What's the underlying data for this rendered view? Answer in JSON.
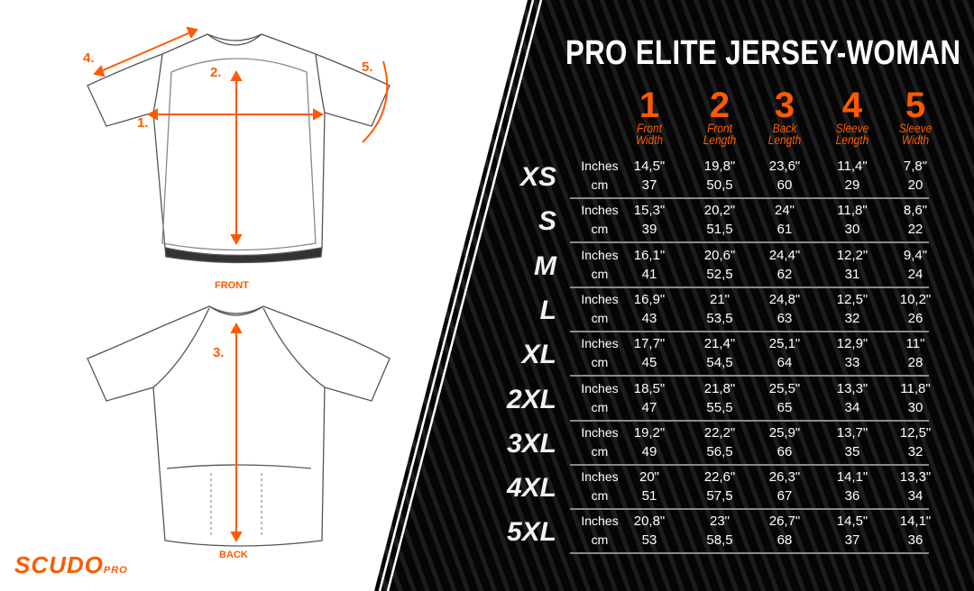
{
  "title": "PRO ELITE JERSEY-WOMAN",
  "brand": {
    "name": "SCUDO",
    "sub": "PRO"
  },
  "accent_color": "#ff5a00",
  "diagram": {
    "front_label": "FRONT",
    "back_label": "BACK",
    "markers": [
      "1.",
      "2.",
      "3.",
      "4.",
      "5."
    ]
  },
  "columns": [
    {
      "num": "1",
      "label": "Front Width"
    },
    {
      "num": "2",
      "label": "Front Length"
    },
    {
      "num": "3",
      "label": "Back Length"
    },
    {
      "num": "4",
      "label": "Sleeve Length"
    },
    {
      "num": "5",
      "label": "Sleeve Width"
    }
  ],
  "units": {
    "inches": "Inches",
    "cm": "cm"
  },
  "rows": [
    {
      "size": "XS",
      "inches": [
        "14,5\"",
        "19,8\"",
        "23,6\"",
        "11,4\"",
        "7,8\""
      ],
      "cm": [
        "37",
        "50,5",
        "60",
        "29",
        "20"
      ]
    },
    {
      "size": "S",
      "inches": [
        "15,3\"",
        "20,2\"",
        "24\"",
        "11,8\"",
        "8,6\""
      ],
      "cm": [
        "39",
        "51,5",
        "61",
        "30",
        "22"
      ]
    },
    {
      "size": "M",
      "inches": [
        "16,1\"",
        "20,6\"",
        "24,4\"",
        "12,2\"",
        "9,4\""
      ],
      "cm": [
        "41",
        "52,5",
        "62",
        "31",
        "24"
      ]
    },
    {
      "size": "L",
      "inches": [
        "16,9\"",
        "21\"",
        "24,8\"",
        "12,5\"",
        "10,2\""
      ],
      "cm": [
        "43",
        "53,5",
        "63",
        "32",
        "26"
      ]
    },
    {
      "size": "XL",
      "inches": [
        "17,7\"",
        "21,4\"",
        "25,1\"",
        "12,9\"",
        "11\""
      ],
      "cm": [
        "45",
        "54,5",
        "64",
        "33",
        "28"
      ]
    },
    {
      "size": "2XL",
      "inches": [
        "18,5\"",
        "21,8\"",
        "25,5\"",
        "13,3\"",
        "11,8\""
      ],
      "cm": [
        "47",
        "55,5",
        "65",
        "34",
        "30"
      ]
    },
    {
      "size": "3XL",
      "inches": [
        "19,2\"",
        "22,2\"",
        "25,9\"",
        "13,7\"",
        "12,5\""
      ],
      "cm": [
        "49",
        "56,5",
        "66",
        "35",
        "32"
      ]
    },
    {
      "size": "4XL",
      "inches": [
        "20\"",
        "22,6\"",
        "26,3\"",
        "14,1\"",
        "13,3\""
      ],
      "cm": [
        "51",
        "57,5",
        "67",
        "36",
        "34"
      ]
    },
    {
      "size": "5XL",
      "inches": [
        "20,8\"",
        "23\"",
        "26,7\"",
        "14,5\"",
        "14,1\""
      ],
      "cm": [
        "53",
        "58,5",
        "68",
        "37",
        "36"
      ]
    }
  ]
}
